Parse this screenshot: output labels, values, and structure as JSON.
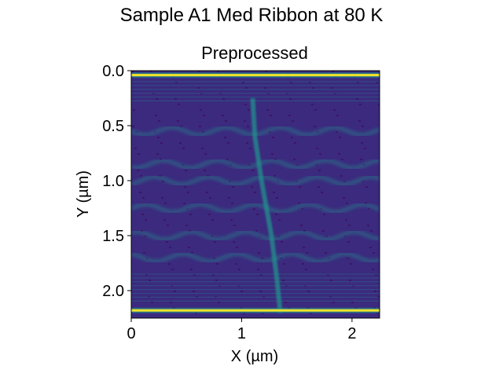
{
  "figure": {
    "suptitle": "Sample A1 Med Ribbon at 80 K"
  },
  "chart_data": {
    "type": "heatmap",
    "title": "Preprocessed",
    "xlabel": "X (µm)",
    "ylabel": "Y (µm)",
    "xlim": [
      0,
      2.25
    ],
    "ylim": [
      2.25,
      0
    ],
    "y_inverted": true,
    "x_ticks": [
      0,
      1,
      2
    ],
    "x_tick_labels": [
      "0",
      "1",
      "2"
    ],
    "y_ticks": [
      0.0,
      0.5,
      1.0,
      1.5,
      2.0
    ],
    "y_tick_labels": [
      "0.0",
      "0.5",
      "1.0",
      "1.5",
      "2.0"
    ],
    "colormap": "viridis",
    "colors": {
      "low": "#440154",
      "base": "#3b2a7e",
      "mid": "#21918c",
      "high": "#fde725"
    },
    "features": {
      "bright_bands_y": [
        0.04,
        2.18
      ],
      "ripple_band_y_range": [
        0.1,
        0.28
      ],
      "ripple_band_lower_y_range": [
        1.85,
        2.12
      ],
      "horizontal_stripes_y": [
        0.55,
        0.85,
        1.0,
        1.25,
        1.5,
        1.7
      ],
      "vertical_ridge_points": [
        [
          1.1,
          0.25
        ],
        [
          1.12,
          0.6
        ],
        [
          1.18,
          1.0
        ],
        [
          1.27,
          1.5
        ],
        [
          1.32,
          1.9
        ],
        [
          1.35,
          2.2
        ]
      ]
    }
  }
}
